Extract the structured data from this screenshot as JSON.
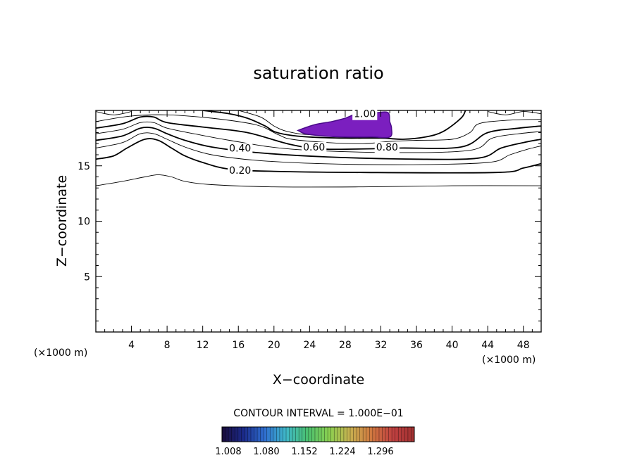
{
  "chart_data": {
    "type": "contour",
    "title": "saturation ratio",
    "xlabel": "X−coordinate",
    "ylabel": "Z−coordinate",
    "x_unit": "(×1000 m)",
    "y_unit": "(×1000 m)",
    "xlim": [
      0,
      50
    ],
    "ylim": [
      0,
      20
    ],
    "x_ticks": [
      4,
      8,
      12,
      16,
      20,
      24,
      28,
      32,
      36,
      40,
      44,
      48
    ],
    "y_ticks": [
      5,
      10,
      15
    ],
    "contour_interval_text": "CONTOUR INTERVAL = 1.000E−01",
    "contour_labels": [
      {
        "text": "0.20",
        "x": 16.2,
        "z": 14.6
      },
      {
        "text": "0.40",
        "x": 16.2,
        "z": 16.6
      },
      {
        "text": "0.60",
        "x": 24.5,
        "z": 16.7
      },
      {
        "text": "0.80",
        "x": 32.7,
        "z": 16.7
      },
      {
        "text": "1.00",
        "x": 30.2,
        "z": 19.7
      }
    ],
    "contours": [
      {
        "level": 0.1,
        "bold": false,
        "points": [
          [
            0,
            13.2
          ],
          [
            3,
            13.6
          ],
          [
            5.5,
            14.0
          ],
          [
            7,
            14.2
          ],
          [
            8.5,
            14.0
          ],
          [
            10,
            13.6
          ],
          [
            13,
            13.3
          ],
          [
            20,
            13.1
          ],
          [
            30,
            13.1
          ],
          [
            40,
            13.2
          ],
          [
            50,
            13.2
          ]
        ]
      },
      {
        "level": 0.2,
        "bold": true,
        "points": [
          [
            0,
            15.6
          ],
          [
            2,
            15.9
          ],
          [
            3.5,
            16.6
          ],
          [
            5.5,
            17.4
          ],
          [
            7,
            17.3
          ],
          [
            8.5,
            16.6
          ],
          [
            10,
            15.9
          ],
          [
            12,
            15.3
          ],
          [
            15,
            14.7
          ],
          [
            20,
            14.5
          ],
          [
            30,
            14.4
          ],
          [
            45,
            14.4
          ],
          [
            48,
            14.8
          ],
          [
            50,
            15.2
          ]
        ]
      },
      {
        "level": 0.3,
        "bold": false,
        "points": [
          [
            0,
            16.6
          ],
          [
            3,
            17.1
          ],
          [
            5,
            17.9
          ],
          [
            6.5,
            17.9
          ],
          [
            8,
            17.4
          ],
          [
            10,
            16.7
          ],
          [
            13,
            16.0
          ],
          [
            18,
            15.5
          ],
          [
            25,
            15.2
          ],
          [
            35,
            15.1
          ],
          [
            44,
            15.3
          ],
          [
            46.5,
            16.0
          ],
          [
            48.5,
            16.5
          ],
          [
            50,
            16.8
          ]
        ]
      },
      {
        "level": 0.4,
        "bold": true,
        "points": [
          [
            0,
            17.3
          ],
          [
            3,
            17.7
          ],
          [
            5,
            18.4
          ],
          [
            6.5,
            18.4
          ],
          [
            8,
            17.9
          ],
          [
            10,
            17.3
          ],
          [
            13,
            16.7
          ],
          [
            18,
            16.2
          ],
          [
            26,
            15.8
          ],
          [
            36,
            15.6
          ],
          [
            43,
            15.7
          ],
          [
            45.5,
            16.6
          ],
          [
            48,
            17.1
          ],
          [
            50,
            17.4
          ]
        ]
      },
      {
        "level": 0.5,
        "bold": false,
        "points": [
          [
            0,
            17.9
          ],
          [
            3,
            18.3
          ],
          [
            5,
            18.9
          ],
          [
            6.5,
            18.9
          ],
          [
            8,
            18.4
          ],
          [
            11,
            17.9
          ],
          [
            15,
            17.3
          ],
          [
            22,
            16.5
          ],
          [
            33,
            16.2
          ],
          [
            42,
            16.4
          ],
          [
            44.5,
            17.5
          ],
          [
            47.5,
            17.9
          ],
          [
            50,
            18.1
          ]
        ]
      },
      {
        "level": 0.6,
        "bold": true,
        "points": [
          [
            0,
            18.4
          ],
          [
            3,
            18.8
          ],
          [
            5,
            19.4
          ],
          [
            6.5,
            19.4
          ],
          [
            8,
            18.9
          ],
          [
            12,
            18.5
          ],
          [
            17,
            18.0
          ],
          [
            22,
            16.9
          ],
          [
            26,
            16.5
          ],
          [
            34,
            16.6
          ],
          [
            41,
            16.7
          ],
          [
            44,
            18.0
          ],
          [
            47.5,
            18.4
          ],
          [
            50,
            18.6
          ]
        ]
      },
      {
        "level": 0.7,
        "bold": false,
        "points": [
          [
            0,
            19.0
          ],
          [
            4,
            19.5
          ],
          [
            8,
            19.6
          ],
          [
            13,
            19.3
          ],
          [
            18,
            18.7
          ],
          [
            20.5,
            17.8
          ],
          [
            22,
            17.4
          ],
          [
            26,
            17.1
          ],
          [
            30,
            17.0
          ],
          [
            33,
            17.2
          ],
          [
            36,
            17.3
          ],
          [
            40,
            17.4
          ],
          [
            42,
            18.0
          ],
          [
            43,
            18.8
          ],
          [
            46,
            19.1
          ],
          [
            50,
            19.2
          ]
        ]
      },
      {
        "level": 0.8,
        "bold": true,
        "points": [
          [
            12,
            20
          ],
          [
            15,
            19.7
          ],
          [
            17,
            19.3
          ],
          [
            19,
            18.6
          ],
          [
            20,
            18.1
          ],
          [
            21.5,
            17.8
          ],
          [
            24,
            17.6
          ],
          [
            28,
            17.5
          ],
          [
            32,
            17.5
          ],
          [
            34.5,
            17.4
          ],
          [
            37,
            17.6
          ],
          [
            39,
            18.1
          ],
          [
            41,
            19.3
          ],
          [
            41.5,
            20
          ]
        ]
      },
      {
        "level": 0.9,
        "bold": false,
        "points": [
          [
            16,
            20
          ],
          [
            18.5,
            19.4
          ],
          [
            20,
            18.6
          ],
          [
            21.5,
            18.1
          ],
          [
            24,
            17.8
          ],
          [
            27,
            17.9
          ],
          [
            29.5,
            19.2
          ],
          [
            31,
            20
          ]
        ]
      },
      {
        "level": 0.0,
        "bold": false,
        "points": [
          [
            0,
            19.9
          ],
          [
            2,
            19.6
          ],
          [
            4,
            19.9
          ]
        ]
      },
      {
        "level": 0.0,
        "bold": false,
        "points": [
          [
            44,
            19.9
          ],
          [
            46,
            19.6
          ],
          [
            48,
            19.9
          ],
          [
            50,
            19.7
          ]
        ]
      }
    ],
    "shaded_region": {
      "color": "#7b1fbf",
      "edge": "#4a0a8a",
      "points": [
        [
          22.7,
          18.2
        ],
        [
          24.5,
          18.7
        ],
        [
          26.5,
          19.0
        ],
        [
          28,
          19.3
        ],
        [
          29.2,
          19.7
        ],
        [
          30,
          19.8
        ],
        [
          31.5,
          19.8
        ],
        [
          32.8,
          19.8
        ],
        [
          33,
          19.0
        ],
        [
          33.2,
          18.4
        ],
        [
          33,
          17.6
        ],
        [
          31,
          17.6
        ],
        [
          28,
          17.6
        ],
        [
          25.5,
          17.7
        ],
        [
          23.5,
          17.9
        ]
      ]
    },
    "colorbar": {
      "ticks": [
        "1.008",
        "1.080",
        "1.152",
        "1.224",
        "1.296"
      ],
      "stops": [
        "#1a0b3a",
        "#1b2a8a",
        "#2f6fd0",
        "#3fb8c8",
        "#4ac070",
        "#8ad050",
        "#c8b050",
        "#d07840",
        "#c04040",
        "#a03030"
      ]
    }
  }
}
